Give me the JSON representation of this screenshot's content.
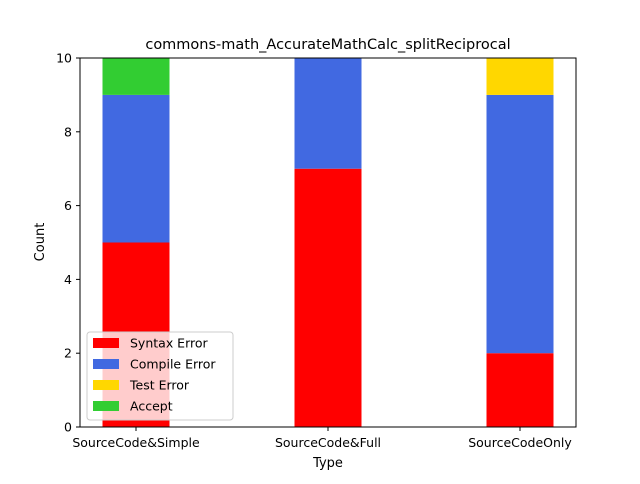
{
  "chart_data": {
    "type": "bar",
    "stacked": true,
    "title": "commons-math_AccurateMathCalc_splitReciprocal",
    "xlabel": "Type",
    "ylabel": "Count",
    "categories": [
      "SourceCode&Simple",
      "SourceCode&Full",
      "SourceCodeOnly"
    ],
    "ylim": [
      0,
      10
    ],
    "yticks": [
      "0",
      "2",
      "4",
      "6",
      "8",
      "10"
    ],
    "grid": false,
    "legend_position": "lower-left",
    "series": [
      {
        "name": "Syntax Error",
        "color": "#ff0000",
        "values": [
          5,
          7,
          2
        ]
      },
      {
        "name": "Compile Error",
        "color": "#4169e1",
        "values": [
          4,
          3,
          7
        ]
      },
      {
        "name": "Test Error",
        "color": "#ffd700",
        "values": [
          0,
          0,
          1
        ]
      },
      {
        "name": "Accept",
        "color": "#32cd32",
        "values": [
          1,
          0,
          0
        ]
      }
    ]
  }
}
